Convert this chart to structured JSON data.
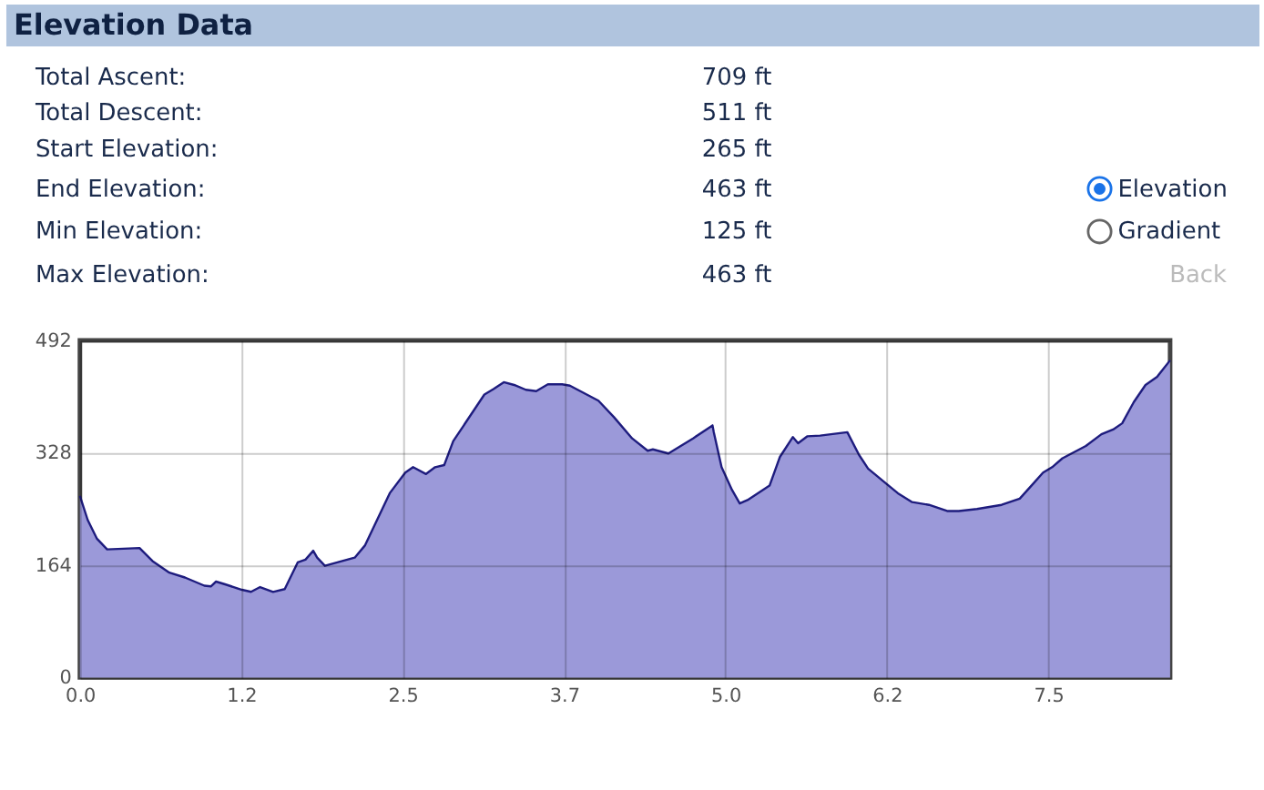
{
  "chart_data": [
    {
      "type": "other",
      "title": "Elevation Data",
      "annotations": [
        "Total Ascent:",
        "709 ft",
        "Total Descent:",
        "511 ft",
        "Start Elevation:",
        "265 ft",
        "End Elevation:",
        "463 ft",
        "Min Elevation:",
        "125 ft",
        "Max Elevation:",
        "463 ft",
        "Elevation",
        "Gradient",
        "Back"
      ]
    },
    {
      "type": "area",
      "x": [
        0,
        0.06,
        0.13,
        0.21,
        0.46,
        0.56,
        0.69,
        0.81,
        0.96,
        1.01,
        1.05,
        1.12,
        1.25,
        1.32,
        1.39,
        1.49,
        1.58,
        1.68,
        1.74,
        1.8,
        1.83,
        1.89,
        2.12,
        2.2,
        2.39,
        2.51,
        2.57,
        2.67,
        2.74,
        2.81,
        2.88,
        3.12,
        3.19,
        3.27,
        3.35,
        3.44,
        3.52,
        3.61,
        3.72,
        3.78,
        4.0,
        4.12,
        4.26,
        4.38,
        4.42,
        4.54,
        4.73,
        4.88,
        4.89,
        4.95,
        5.03,
        5.09,
        5.15,
        5.32,
        5.4,
        5.5,
        5.54,
        5.61,
        5.71,
        5.92,
        6.01,
        6.08,
        6.22,
        6.31,
        6.42,
        6.55,
        6.69,
        6.78,
        6.92,
        7.11,
        7.25,
        7.34,
        7.43,
        7.5,
        7.58,
        7.76,
        7.88,
        7.97,
        8.04,
        8.13,
        8.22,
        8.31,
        8.41
      ],
      "series": [
        {
          "color": "#9b99d9",
          "values": [
            265,
            230,
            203,
            187,
            189,
            170,
            153,
            146,
            134,
            133,
            140,
            136,
            128,
            125,
            132,
            125,
            129,
            168,
            172,
            185,
            175,
            163,
            175,
            193,
            269,
            299,
            307,
            297,
            307,
            310,
            345,
            413,
            421,
            431,
            427,
            420,
            418,
            428,
            428,
            426,
            404,
            380,
            349,
            331,
            333,
            327,
            349,
            368,
            358,
            307,
            274,
            254,
            259,
            280,
            322,
            351,
            342,
            352,
            353,
            358,
            325,
            305,
            283,
            269,
            256,
            252,
            243,
            243,
            246,
            252,
            261,
            280,
            299,
            307,
            320,
            338,
            355,
            362,
            371,
            402,
            427,
            439,
            463
          ]
        }
      ],
      "xlim": [
        0,
        8.41
      ],
      "xticks": [
        {
          "value": 0,
          "label": "0.0"
        },
        {
          "value": 1.245,
          "label": "1.2"
        },
        {
          "value": 2.49,
          "label": "2.5"
        },
        {
          "value": 3.735,
          "label": "3.7"
        },
        {
          "value": 4.98,
          "label": "5.0"
        },
        {
          "value": 6.225,
          "label": "6.2"
        },
        {
          "value": 7.47,
          "label": "7.5"
        }
      ],
      "ylim": [
        0,
        492
      ],
      "yticks": [
        0,
        164,
        328,
        492
      ],
      "grid": true
    }
  ]
}
